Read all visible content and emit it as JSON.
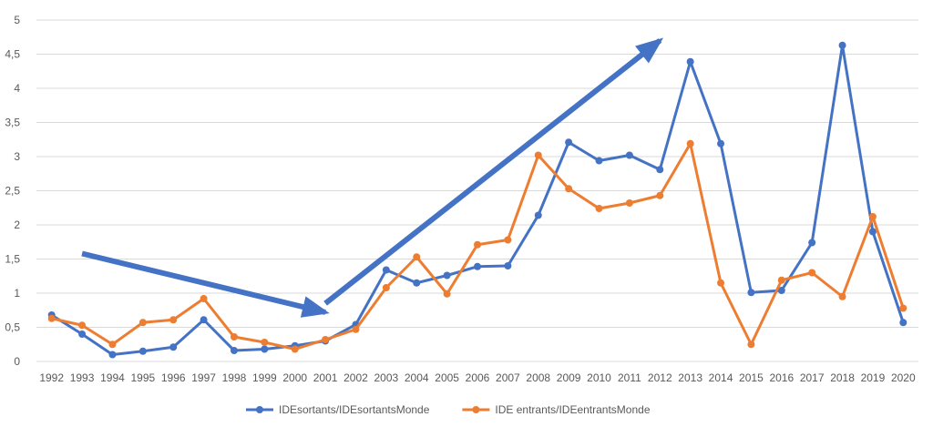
{
  "chart_data": {
    "type": "line",
    "title": "",
    "xlabel": "",
    "ylabel": "",
    "ylim": [
      0,
      5
    ],
    "yticks": [
      "0",
      "0,5",
      "1",
      "1,5",
      "2",
      "2,5",
      "3",
      "3,5",
      "4",
      "4,5",
      "5"
    ],
    "grid": true,
    "legend_position": "bottom",
    "categories": [
      "1992",
      "1993",
      "1994",
      "1995",
      "1996",
      "1997",
      "1998",
      "1999",
      "2000",
      "2001",
      "2002",
      "2003",
      "2004",
      "2005",
      "2006",
      "2007",
      "2008",
      "2009",
      "2010",
      "2011",
      "2012",
      "2013",
      "2014",
      "2015",
      "2016",
      "2017",
      "2018",
      "2019",
      "2020"
    ],
    "series": [
      {
        "name": "IDEsortants/IDEsortantsMonde",
        "color": "#4472c4",
        "values": [
          0.68,
          0.4,
          0.1,
          0.15,
          0.21,
          0.61,
          0.16,
          0.18,
          0.23,
          0.3,
          0.54,
          1.34,
          1.15,
          1.26,
          1.39,
          1.4,
          2.14,
          3.21,
          2.94,
          3.02,
          2.81,
          4.39,
          3.19,
          1.01,
          1.04,
          1.74,
          4.63,
          1.9,
          0.57
        ]
      },
      {
        "name": "IDE entrants/IDEentrantsMonde",
        "color": "#ed7d31",
        "values": [
          0.63,
          0.53,
          0.25,
          0.57,
          0.61,
          0.92,
          0.36,
          0.28,
          0.18,
          0.32,
          0.47,
          1.08,
          1.53,
          0.99,
          1.71,
          1.78,
          3.02,
          2.53,
          2.24,
          2.32,
          2.43,
          3.19,
          1.15,
          0.25,
          1.19,
          1.3,
          0.95,
          2.12,
          0.78
        ]
      }
    ],
    "annotations": [
      {
        "type": "arrow",
        "from": {
          "x": "1993",
          "y": 1.58
        },
        "to": {
          "x": "2001",
          "y": 0.72
        }
      },
      {
        "type": "arrow",
        "from": {
          "x": "2001",
          "y": 0.85
        },
        "to": {
          "x": "2012",
          "y": 4.7
        }
      }
    ]
  }
}
